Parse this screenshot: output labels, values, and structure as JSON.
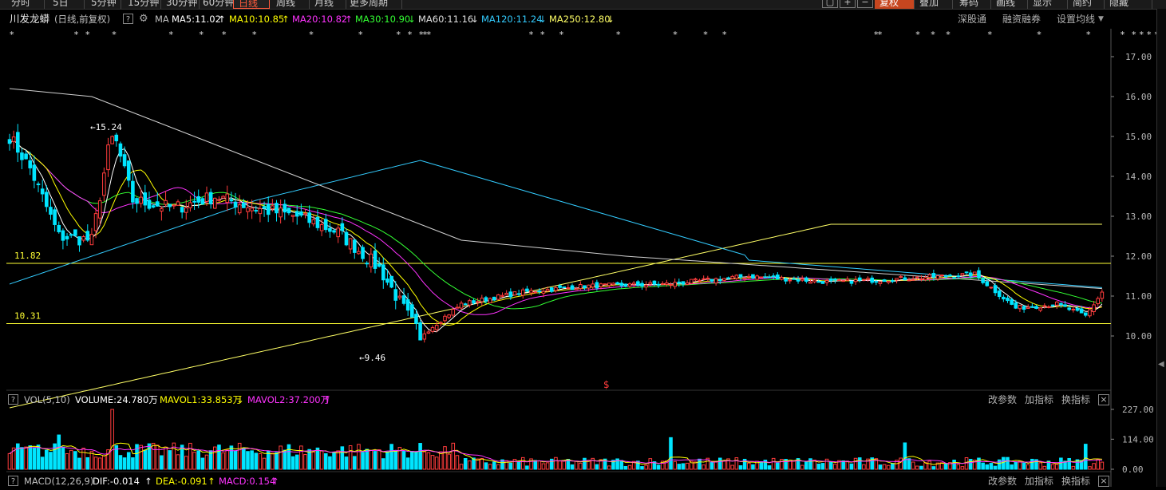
{
  "toolbar": {
    "buttons": [
      "分时",
      "5日",
      "5分钟",
      "15分钟",
      "30分钟",
      "60分钟",
      "日线",
      "周线",
      "月线",
      "更多周期"
    ],
    "active": "日线",
    "right_buttons": [
      "复权",
      "叠加",
      "筹码",
      "画线",
      "显示",
      "简约",
      "隐藏"
    ],
    "highlight": "复权"
  },
  "header": {
    "stock_name": "川发龙蟒",
    "mode": "(日线,前复权)",
    "ma_label": "MA",
    "ma_items": [
      {
        "text": "MA5:11.02",
        "arrow": "↑",
        "color": "#ffffff"
      },
      {
        "text": "MA10:10.85",
        "arrow": "↑",
        "color": "#ffff00"
      },
      {
        "text": "MA20:10.82",
        "arrow": "↑",
        "color": "#ff33ff"
      },
      {
        "text": "MA30:10.90",
        "arrow": "↓",
        "color": "#33ff33"
      },
      {
        "text": "MA60:11.16",
        "arrow": "↓",
        "color": "#e0e0e0"
      },
      {
        "text": "MA120:11.24",
        "arrow": "↓",
        "color": "#33ccff"
      },
      {
        "text": "MA250:12.80",
        "arrow": "↓",
        "color": "#ffff66"
      }
    ],
    "right_links": [
      "深股通",
      "融资融券",
      "设置均线"
    ]
  },
  "price_axis": [
    "17.00",
    "16.00",
    "15.00",
    "14.00",
    "13.00",
    "12.00",
    "11.00",
    "10.00"
  ],
  "markers": {
    "high_label": "15.24",
    "low_label": "9.46",
    "line_upper": "11.82",
    "line_lower": "10.31",
    "dollar": "$"
  },
  "volume_panel": {
    "title": "VOL(5,10)",
    "volume": "VOLUME:24.780万",
    "mavol1": "MAVOL1:33.853万",
    "mavol1_arrow": "↓",
    "mavol2": "MAVOL2:37.200万",
    "mavol2_arrow": "↑",
    "links": [
      "改参数",
      "加指标",
      "换指标"
    ],
    "axis": [
      "227.00",
      "114.00",
      "0.00"
    ]
  },
  "macd_panel": {
    "title": "MACD(12,26,9)",
    "dif": "DIF:-0.014",
    "dif_arrow": "↑",
    "dea": "DEA:-0.091",
    "dea_arrow": "↑",
    "macd": "MACD:0.154",
    "macd_arrow": "↑",
    "links": [
      "改参数",
      "加指标",
      "换指标"
    ]
  },
  "colors": {
    "up": "#ff3c3c",
    "down": "#00e5ff",
    "ma5": "#ffffff",
    "ma10": "#ffff00",
    "ma20": "#ff33ff",
    "ma30": "#33ff33",
    "ma60": "#d0d0d0",
    "ma120": "#33ccff",
    "ma250": "#ffff66",
    "hline": "#ffff33"
  }
}
